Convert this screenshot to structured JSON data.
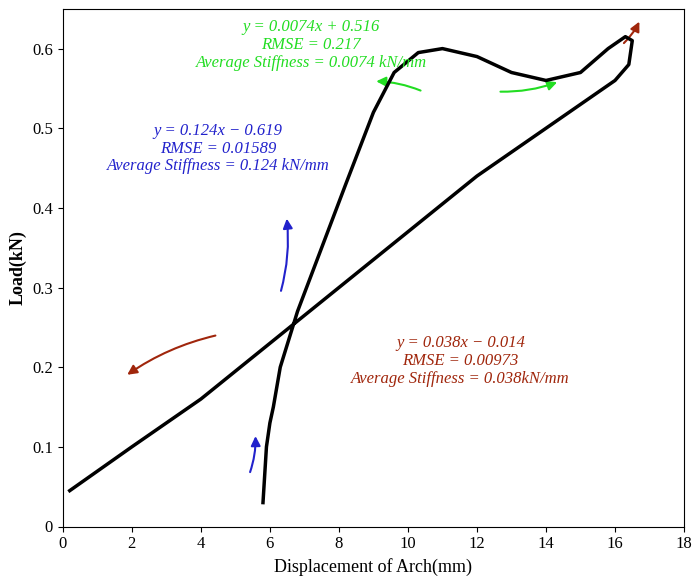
{
  "chart_data": {
    "type": "line",
    "x_label": "Displacement of Arch(mm)",
    "y_label": "Load(kN)",
    "xlim": [
      0,
      18
    ],
    "ylim": [
      0,
      0.65
    ],
    "xticks": [
      0,
      2,
      4,
      6,
      8,
      10,
      12,
      14,
      16,
      18
    ],
    "yticks": [
      0,
      0.1,
      0.2,
      0.3,
      0.4,
      0.5,
      0.6
    ],
    "grid": false,
    "series": [
      {
        "color": "#000000",
        "x": [
          5.8,
          5.9,
          6.0,
          6.1,
          6.3,
          6.8,
          7.5,
          8.2,
          9.0,
          9.6,
          10.3,
          11.0,
          12.0,
          13.0,
          14.0,
          15.0,
          15.8,
          16.3,
          16.5,
          16.4,
          16.0,
          14.0,
          12.0,
          10.0,
          8.0,
          6.0,
          4.0,
          2.0,
          0.2
        ],
        "values": [
          0.03,
          0.1,
          0.13,
          0.15,
          0.2,
          0.27,
          0.35,
          0.43,
          0.52,
          0.57,
          0.595,
          0.6,
          0.59,
          0.57,
          0.56,
          0.57,
          0.6,
          0.615,
          0.61,
          0.58,
          0.56,
          0.5,
          0.44,
          0.37,
          0.3,
          0.23,
          0.16,
          0.1,
          0.045
        ]
      }
    ],
    "annotations": [
      {
        "lines": [
          "y = 0.0074x + 0.516",
          "RMSE = 0.217",
          "Average Stiffness = 0.0074 kN/mm"
        ],
        "color": "#22dd22"
      },
      {
        "lines": [
          "y = 0.124x − 0.619",
          "RMSE = 0.01589",
          "Average Stiffness = 0.124 kN/mm"
        ],
        "color": "#2222cc"
      },
      {
        "lines": [
          "y = 0.038x − 0.014",
          "RMSE = 0.00973",
          "Average Stiffness = 0.038kN/mm"
        ],
        "color": "#a0260c"
      }
    ]
  }
}
